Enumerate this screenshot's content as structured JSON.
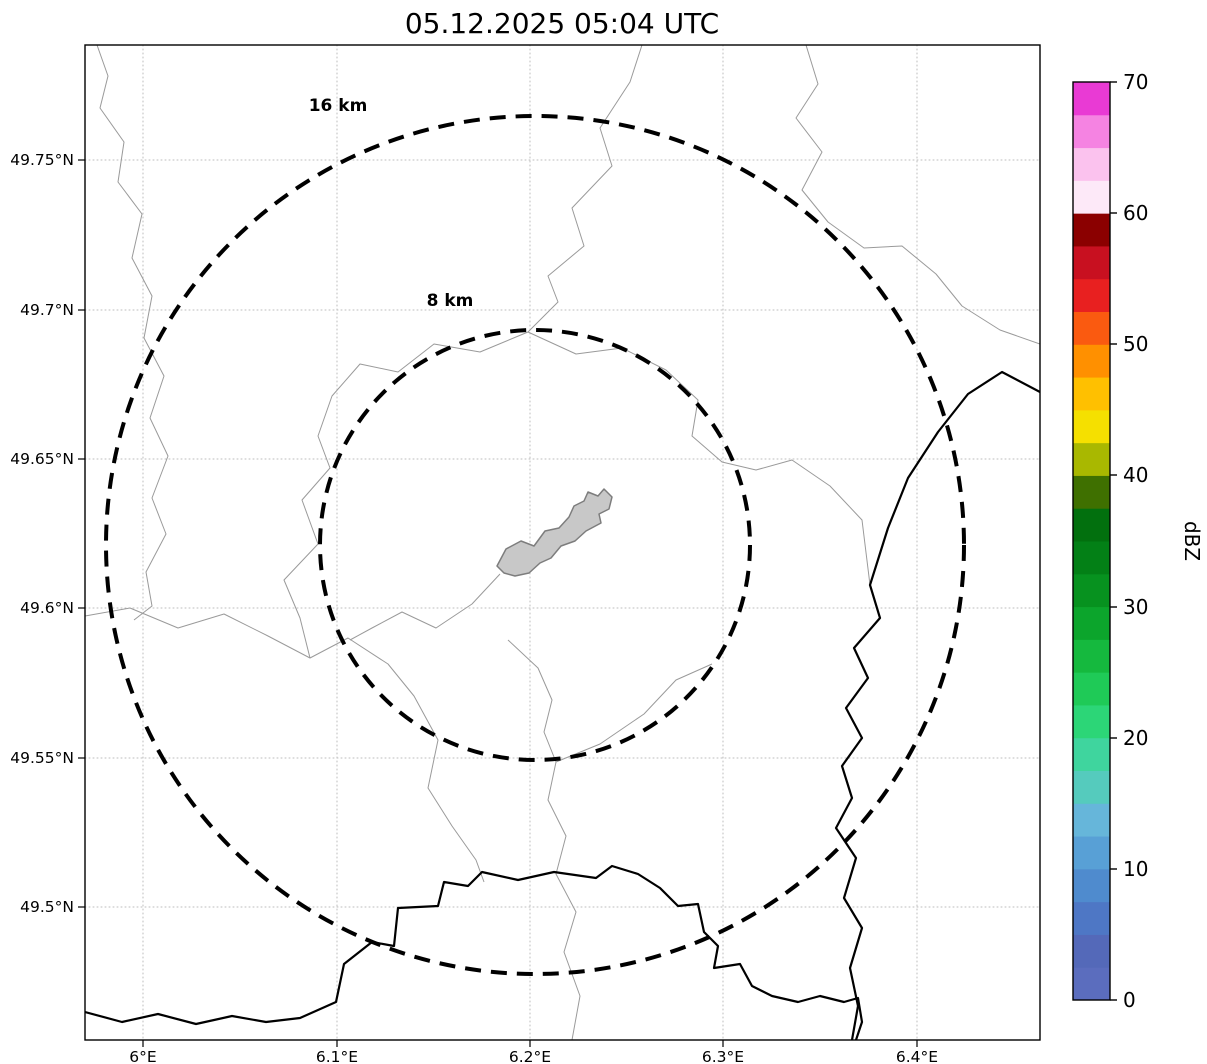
{
  "title": "05.12.2025 05:04 UTC",
  "map": {
    "x_tick_labels": [
      "6°E",
      "6.1°E",
      "6.2°E",
      "6.3°E",
      "6.4°E"
    ],
    "y_tick_labels": [
      "49.75°N",
      "49.7°N",
      "49.65°N",
      "49.6°N",
      "49.55°N",
      "49.5°N"
    ],
    "range_rings": [
      {
        "label": "16 km"
      },
      {
        "label": "8 km"
      }
    ],
    "city_fill_color": "#c8c8c8",
    "city_stroke_color": "#7d7d7d",
    "admin_border_color": "#9a9a9a",
    "country_border_color": "#000000"
  },
  "colorbar": {
    "label": "dBZ",
    "tick_labels": [
      "0",
      "10",
      "20",
      "30",
      "40",
      "50",
      "60",
      "70"
    ],
    "min_dbz": 0,
    "max_dbz": 70,
    "segment_colors_bottom_to_top": [
      "#5b6dbe",
      "#5469b9",
      "#4e77c5",
      "#4f8bce",
      "#58a0d6",
      "#66b6da",
      "#55cbbd",
      "#3fd59e",
      "#2cd677",
      "#1fca57",
      "#15b93e",
      "#0ca52c",
      "#07921f",
      "#038016",
      "#02700e",
      "#3f7000",
      "#a9b800",
      "#f5e000",
      "#ffc000",
      "#ff9000",
      "#fa5a10",
      "#e82020",
      "#c81020",
      "#8b0000",
      "#fde9f8",
      "#fbc2ee",
      "#f583e2",
      "#e93ad4"
    ]
  },
  "chart_data": {
    "type": "map",
    "title": "05.12.2025 05:04 UTC",
    "x_axis": {
      "tick_labels": [
        "6°E",
        "6.1°E",
        "6.2°E",
        "6.3°E",
        "6.4°E"
      ]
    },
    "y_axis": {
      "tick_labels": [
        "49.75°N",
        "49.7°N",
        "49.65°N",
        "49.6°N",
        "49.55°N",
        "49.5°N"
      ]
    },
    "colorbar": {
      "label": "dBZ",
      "range": [
        0,
        70
      ],
      "ticks": [
        0,
        10,
        20,
        30,
        40,
        50,
        60,
        70
      ]
    },
    "range_rings_km": [
      8,
      16
    ],
    "radar_echoes": [],
    "grid": true,
    "legend_position": "right-colorbar"
  }
}
